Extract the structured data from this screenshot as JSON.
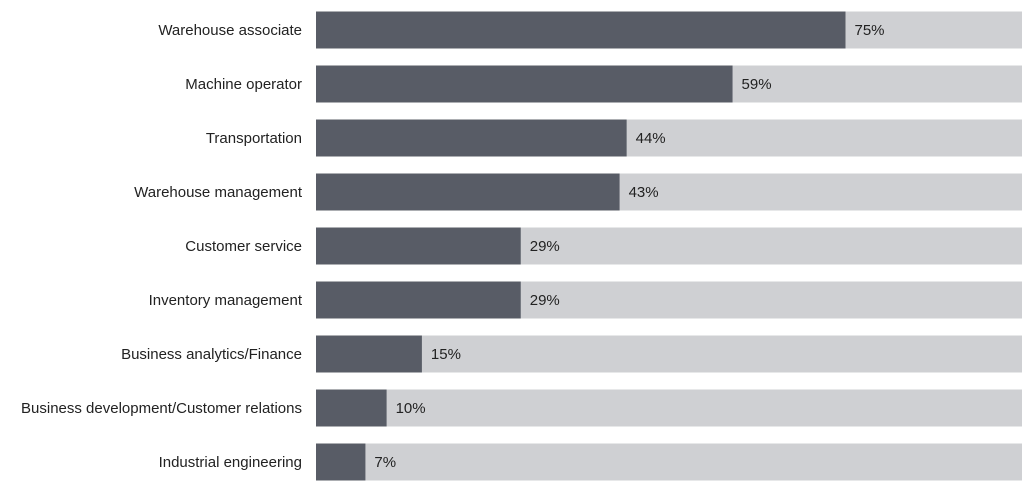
{
  "chart_data": {
    "type": "bar",
    "orientation": "horizontal",
    "categories": [
      "Warehouse associate",
      "Machine operator",
      "Transportation",
      "Warehouse management",
      "Customer service",
      "Inventory management",
      "Business analytics/Finance",
      "Business development/Customer relations",
      "Industrial engineering"
    ],
    "values": [
      75,
      59,
      44,
      43,
      29,
      29,
      15,
      10,
      7
    ],
    "value_labels": [
      "75%",
      "59%",
      "44%",
      "43%",
      "29%",
      "29%",
      "15%",
      "10%",
      "7%"
    ],
    "color": "#585c66",
    "track_color": "#cfd0d3",
    "xlim": [
      0,
      100
    ]
  }
}
